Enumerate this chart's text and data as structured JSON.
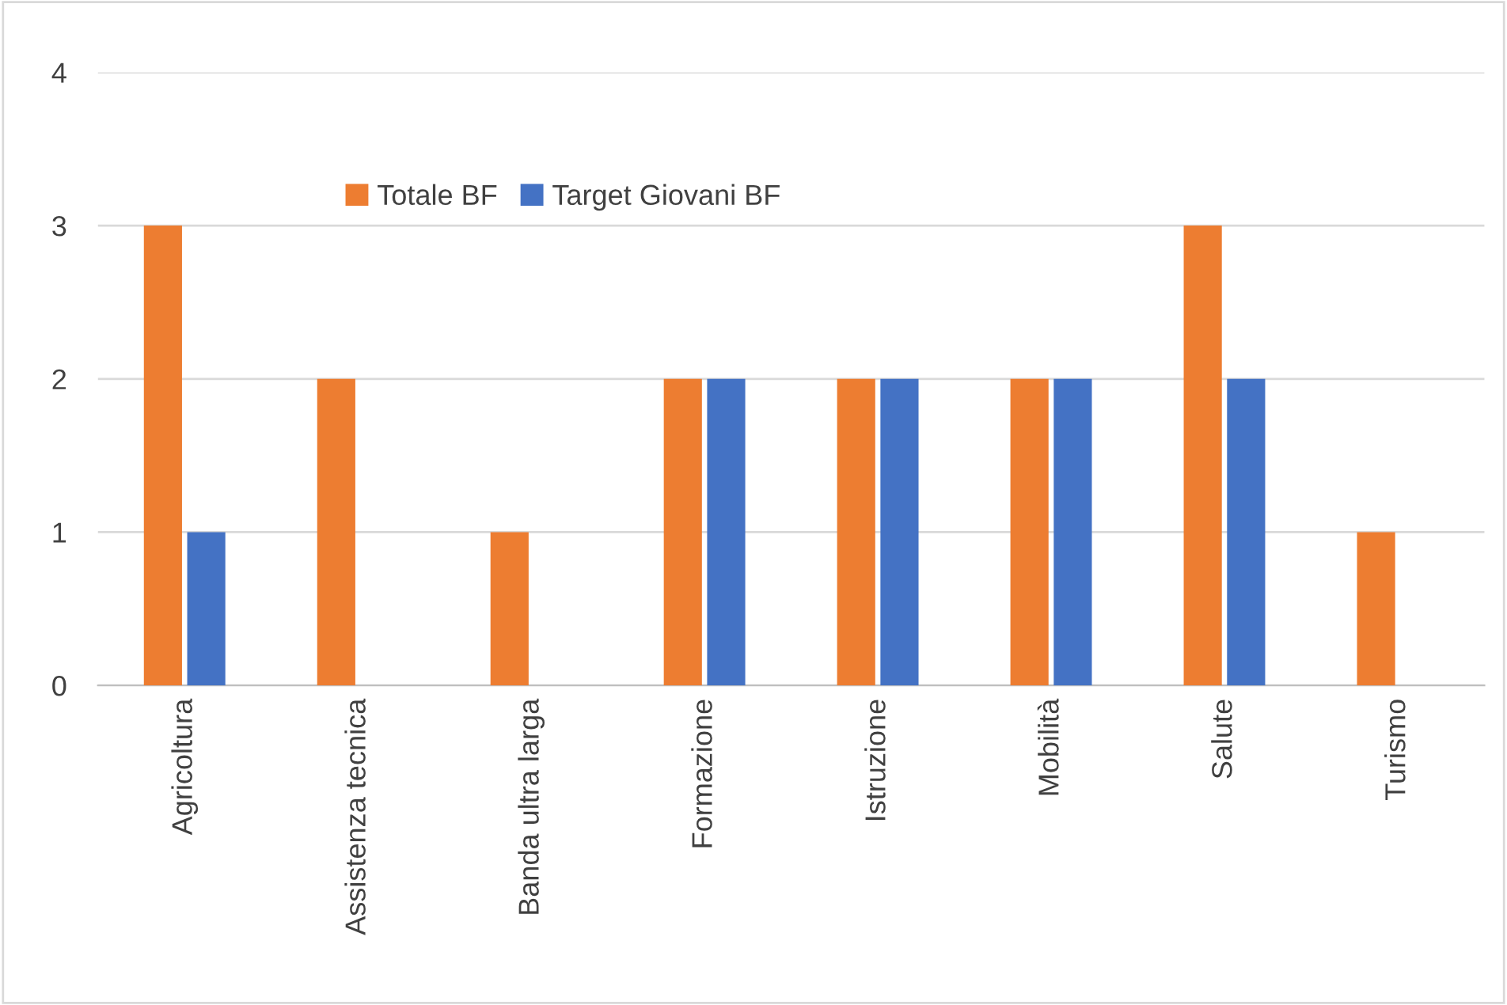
{
  "chart_data": {
    "type": "bar",
    "categories": [
      "Agricoltura",
      "Assistenza tecnica",
      "Banda ultra larga",
      "Formazione",
      "Istruzione",
      "Mobilità",
      "Salute",
      "Turismo"
    ],
    "series": [
      {
        "name": "Totale BF",
        "color": "#ed7d31",
        "values": [
          3,
          2,
          1,
          2,
          2,
          2,
          3,
          1
        ]
      },
      {
        "name": "Target Giovani BF",
        "color": "#4472c4",
        "values": [
          1,
          0,
          0,
          2,
          2,
          2,
          2,
          0
        ]
      }
    ],
    "ylim": [
      0,
      4
    ],
    "yticks": [
      0,
      1,
      2,
      3,
      4
    ],
    "grid": "y",
    "legend": "top"
  }
}
